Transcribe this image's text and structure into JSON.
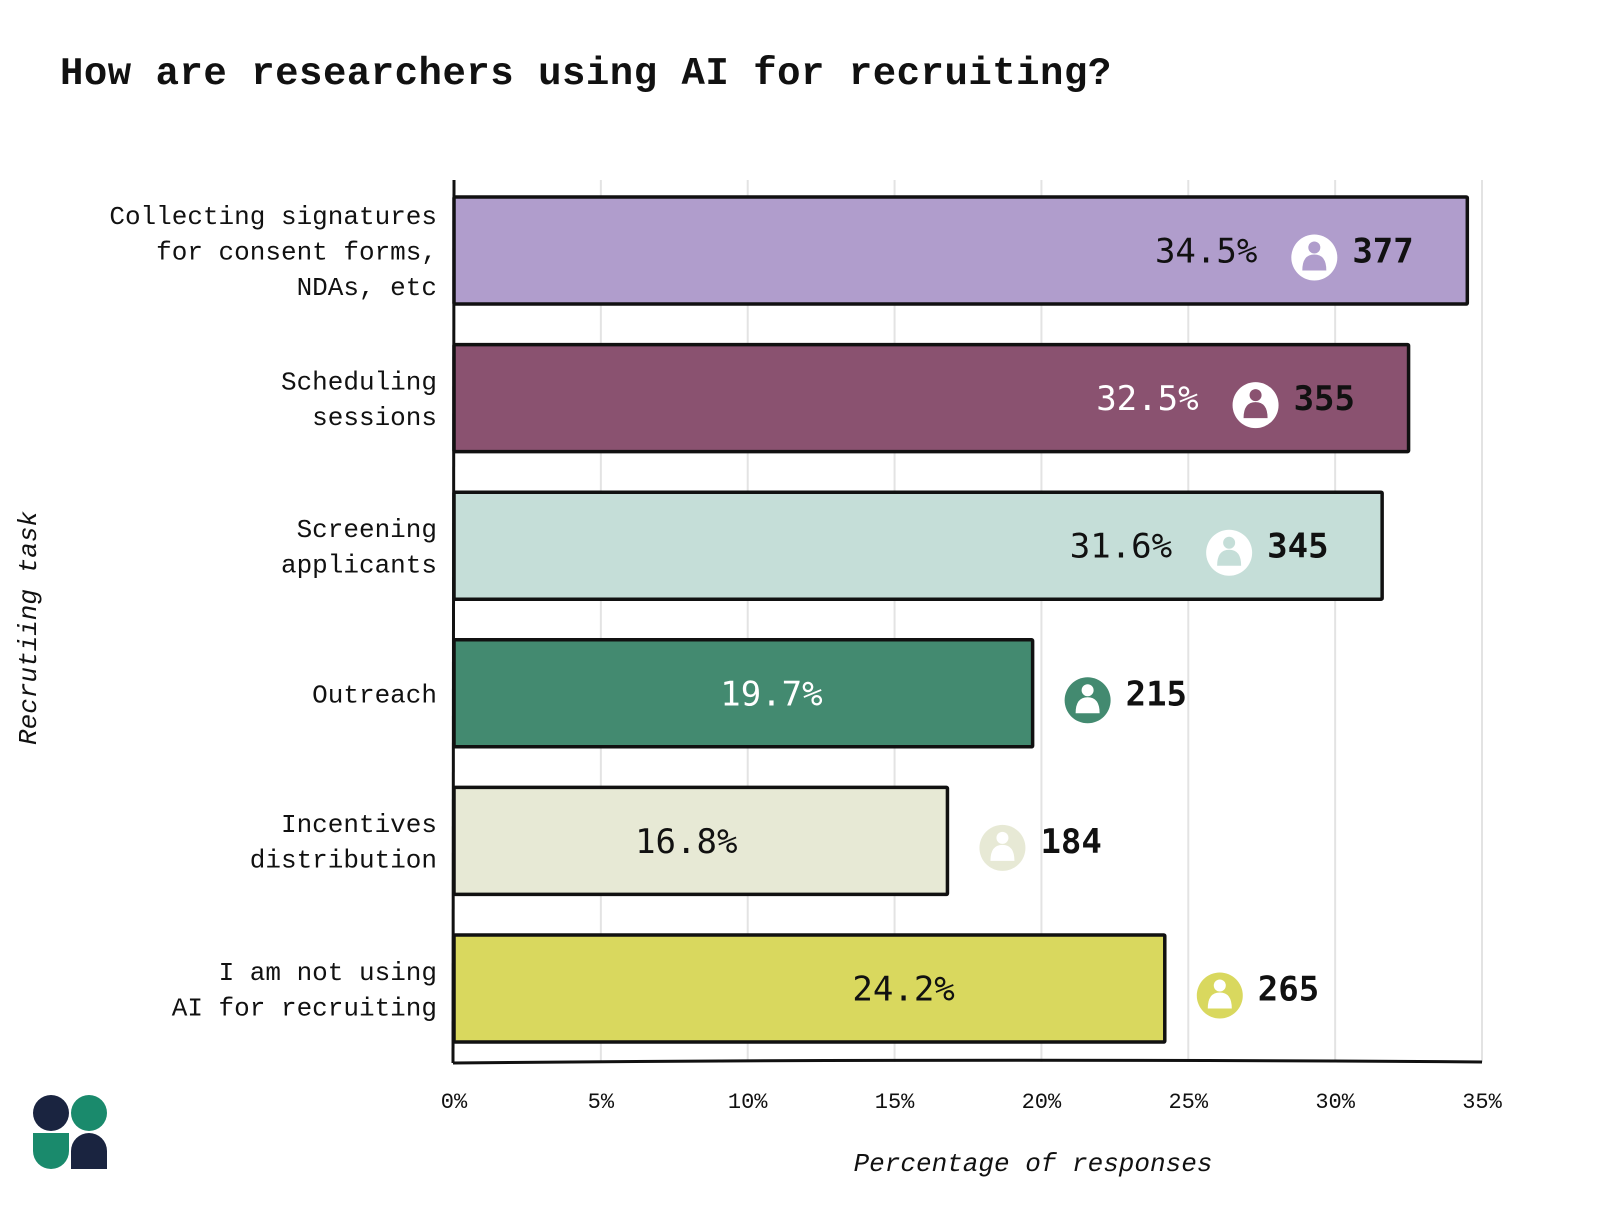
{
  "chart_data": {
    "type": "bar",
    "orientation": "horizontal",
    "title": "How are researchers using AI for recruiting?",
    "xlabel": "Percentage of responses",
    "ylabel": "Recrutiing task",
    "xlim": [
      0,
      35
    ],
    "xticks": [
      "0%",
      "5%",
      "10%",
      "15%",
      "20%",
      "25%",
      "30%",
      "35%"
    ],
    "grid": "vertical",
    "categories": [
      {
        "label_lines": [
          "Collecting signatures",
          "for consent forms,",
          "NDAs, etc"
        ],
        "value": 34.5,
        "value_label": "34.5%",
        "count": "377",
        "color": "#b09dcc",
        "text_color": "#111111"
      },
      {
        "label_lines": [
          "Scheduling",
          "sessions"
        ],
        "value": 32.5,
        "value_label": "32.5%",
        "count": "355",
        "color": "#8a5270",
        "text_color": "#ffffff"
      },
      {
        "label_lines": [
          "Screening",
          "applicants"
        ],
        "value": 31.6,
        "value_label": "31.6%",
        "count": "345",
        "color": "#c5ded8",
        "text_color": "#111111"
      },
      {
        "label_lines": [
          "Outreach"
        ],
        "value": 19.7,
        "value_label": "19.7%",
        "count": "215",
        "color": "#438a70",
        "text_color": "#ffffff"
      },
      {
        "label_lines": [
          "Incentives",
          "distribution"
        ],
        "value": 16.8,
        "value_label": "16.8%",
        "count": "184",
        "color": "#e7e9d5",
        "text_color": "#111111"
      },
      {
        "label_lines": [
          "I am not using",
          "AI for recruiting"
        ],
        "value": 24.2,
        "value_label": "24.2%",
        "count": "265",
        "color": "#d9d85e",
        "text_color": "#111111"
      }
    ]
  },
  "logo": {
    "colors": [
      "#1a2440",
      "#1a8a6c"
    ]
  }
}
